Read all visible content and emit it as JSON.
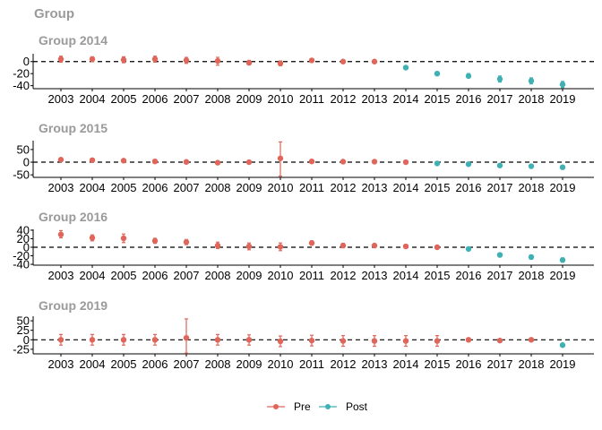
{
  "chart_data": {
    "type": "scatter",
    "title": "Group",
    "xlabel": "",
    "ylabel": "",
    "grid": false,
    "legend_position": "bottom",
    "colors": {
      "Pre": "#e0655a",
      "Post": "#3fb0b4",
      "reference_line": "#000000"
    },
    "legend": {
      "title": "",
      "items": [
        "Pre",
        "Post"
      ]
    },
    "x": [
      2003,
      2004,
      2005,
      2006,
      2007,
      2008,
      2009,
      2010,
      2011,
      2012,
      2013,
      2014,
      2015,
      2016,
      2017,
      2018,
      2019
    ],
    "panels": [
      {
        "title": "Group 2014",
        "ylim": [
          -45,
          13
        ],
        "yticks": [
          0,
          -20,
          -40
        ],
        "ref_y": 0,
        "points": [
          {
            "x": 2003,
            "y": 4,
            "lo": -1,
            "hi": 9,
            "group": "Pre"
          },
          {
            "x": 2004,
            "y": 4,
            "lo": 0,
            "hi": 8,
            "group": "Pre"
          },
          {
            "x": 2005,
            "y": 3,
            "lo": -2,
            "hi": 8,
            "group": "Pre"
          },
          {
            "x": 2006,
            "y": 4,
            "lo": -1,
            "hi": 9,
            "group": "Pre"
          },
          {
            "x": 2007,
            "y": 2,
            "lo": -3,
            "hi": 7,
            "group": "Pre"
          },
          {
            "x": 2008,
            "y": 1,
            "lo": -6,
            "hi": 7,
            "group": "Pre"
          },
          {
            "x": 2009,
            "y": -2,
            "lo": -5,
            "hi": 2,
            "group": "Pre"
          },
          {
            "x": 2010,
            "y": -3,
            "lo": -7,
            "hi": 1,
            "group": "Pre"
          },
          {
            "x": 2011,
            "y": 2,
            "lo": 0,
            "hi": 4,
            "group": "Pre"
          },
          {
            "x": 2012,
            "y": 0,
            "lo": -1,
            "hi": 1,
            "group": "Pre"
          },
          {
            "x": 2013,
            "y": 0,
            "lo": 0,
            "hi": 0,
            "group": "Pre"
          },
          {
            "x": 2014,
            "y": -10,
            "lo": -12,
            "hi": -8,
            "group": "Post"
          },
          {
            "x": 2015,
            "y": -20,
            "lo": -23,
            "hi": -17,
            "group": "Post"
          },
          {
            "x": 2016,
            "y": -24,
            "lo": -27,
            "hi": -20,
            "group": "Post"
          },
          {
            "x": 2017,
            "y": -29,
            "lo": -34,
            "hi": -24,
            "group": "Post"
          },
          {
            "x": 2018,
            "y": -32,
            "lo": -37,
            "hi": -27,
            "group": "Post"
          },
          {
            "x": 2019,
            "y": -38,
            "lo": -43,
            "hi": -33,
            "group": "Post"
          }
        ]
      },
      {
        "title": "Group 2015",
        "ylim": [
          -60,
          85
        ],
        "yticks": [
          50,
          0,
          -50
        ],
        "ref_y": 0,
        "points": [
          {
            "x": 2003,
            "y": 10,
            "lo": 5,
            "hi": 15,
            "group": "Pre"
          },
          {
            "x": 2004,
            "y": 8,
            "lo": 2,
            "hi": 14,
            "group": "Pre"
          },
          {
            "x": 2005,
            "y": 6,
            "lo": 0,
            "hi": 12,
            "group": "Pre"
          },
          {
            "x": 2006,
            "y": 3,
            "lo": -3,
            "hi": 9,
            "group": "Pre"
          },
          {
            "x": 2007,
            "y": 1,
            "lo": -5,
            "hi": 7,
            "group": "Pre"
          },
          {
            "x": 2008,
            "y": -2,
            "lo": -8,
            "hi": 4,
            "group": "Pre"
          },
          {
            "x": 2009,
            "y": 0,
            "lo": -4,
            "hi": 4,
            "group": "Pre"
          },
          {
            "x": 2010,
            "y": 15,
            "lo": -55,
            "hi": 80,
            "group": "Pre"
          },
          {
            "x": 2011,
            "y": 3,
            "lo": -1,
            "hi": 7,
            "group": "Pre"
          },
          {
            "x": 2012,
            "y": 2,
            "lo": -1,
            "hi": 5,
            "group": "Pre"
          },
          {
            "x": 2013,
            "y": 2,
            "lo": 0,
            "hi": 4,
            "group": "Pre"
          },
          {
            "x": 2014,
            "y": 0,
            "lo": -1,
            "hi": 1,
            "group": "Pre"
          },
          {
            "x": 2015,
            "y": -5,
            "lo": -9,
            "hi": -1,
            "group": "Post"
          },
          {
            "x": 2016,
            "y": -8,
            "lo": -12,
            "hi": -4,
            "group": "Post"
          },
          {
            "x": 2017,
            "y": -13,
            "lo": -18,
            "hi": -8,
            "group": "Post"
          },
          {
            "x": 2018,
            "y": -16,
            "lo": -21,
            "hi": -11,
            "group": "Post"
          },
          {
            "x": 2019,
            "y": -20,
            "lo": -25,
            "hi": -15,
            "group": "Post"
          }
        ]
      },
      {
        "title": "Group 2016",
        "ylim": [
          -42,
          42
        ],
        "yticks": [
          40,
          20,
          0,
          -20,
          -40
        ],
        "ref_y": 0,
        "points": [
          {
            "x": 2003,
            "y": 30,
            "lo": 22,
            "hi": 39,
            "group": "Pre"
          },
          {
            "x": 2004,
            "y": 22,
            "lo": 15,
            "hi": 29,
            "group": "Pre"
          },
          {
            "x": 2005,
            "y": 21,
            "lo": 11,
            "hi": 31,
            "group": "Pre"
          },
          {
            "x": 2006,
            "y": 15,
            "lo": 9,
            "hi": 21,
            "group": "Pre"
          },
          {
            "x": 2007,
            "y": 12,
            "lo": 6,
            "hi": 18,
            "group": "Pre"
          },
          {
            "x": 2008,
            "y": 4,
            "lo": -3,
            "hi": 12,
            "group": "Pre"
          },
          {
            "x": 2009,
            "y": 2,
            "lo": -6,
            "hi": 10,
            "group": "Pre"
          },
          {
            "x": 2010,
            "y": 1,
            "lo": -8,
            "hi": 10,
            "group": "Pre"
          },
          {
            "x": 2011,
            "y": 10,
            "lo": 5,
            "hi": 15,
            "group": "Pre"
          },
          {
            "x": 2012,
            "y": 4,
            "lo": -1,
            "hi": 9,
            "group": "Pre"
          },
          {
            "x": 2013,
            "y": 4,
            "lo": -1,
            "hi": 8,
            "group": "Pre"
          },
          {
            "x": 2014,
            "y": 2,
            "lo": -1,
            "hi": 5,
            "group": "Pre"
          },
          {
            "x": 2015,
            "y": 0,
            "lo": 0,
            "hi": 0,
            "group": "Pre"
          },
          {
            "x": 2016,
            "y": -4,
            "lo": -7,
            "hi": -1,
            "group": "Post"
          },
          {
            "x": 2017,
            "y": -18,
            "lo": -22,
            "hi": -14,
            "group": "Post"
          },
          {
            "x": 2018,
            "y": -23,
            "lo": -28,
            "hi": -18,
            "group": "Post"
          },
          {
            "x": 2019,
            "y": -30,
            "lo": -35,
            "hi": -25,
            "group": "Post"
          }
        ]
      },
      {
        "title": "Group 2019",
        "ylim": [
          -37,
          62
        ],
        "yticks": [
          50,
          25,
          0,
          -25
        ],
        "ref_y": 0,
        "points": [
          {
            "x": 2003,
            "y": 0,
            "lo": -14,
            "hi": 14,
            "group": "Pre"
          },
          {
            "x": 2004,
            "y": 0,
            "lo": -14,
            "hi": 14,
            "group": "Pre"
          },
          {
            "x": 2005,
            "y": 0,
            "lo": -14,
            "hi": 14,
            "group": "Pre"
          },
          {
            "x": 2006,
            "y": 0,
            "lo": -14,
            "hi": 14,
            "group": "Pre"
          },
          {
            "x": 2007,
            "y": 5,
            "lo": -35,
            "hi": 55,
            "group": "Pre"
          },
          {
            "x": 2008,
            "y": 0,
            "lo": -14,
            "hi": 14,
            "group": "Pre"
          },
          {
            "x": 2009,
            "y": 0,
            "lo": -14,
            "hi": 13,
            "group": "Pre"
          },
          {
            "x": 2010,
            "y": -4,
            "lo": -18,
            "hi": 10,
            "group": "Pre"
          },
          {
            "x": 2011,
            "y": -2,
            "lo": -16,
            "hi": 12,
            "group": "Pre"
          },
          {
            "x": 2012,
            "y": -3,
            "lo": -17,
            "hi": 11,
            "group": "Pre"
          },
          {
            "x": 2013,
            "y": -3,
            "lo": -17,
            "hi": 11,
            "group": "Pre"
          },
          {
            "x": 2014,
            "y": -3,
            "lo": -17,
            "hi": 11,
            "group": "Pre"
          },
          {
            "x": 2015,
            "y": -3,
            "lo": -17,
            "hi": 11,
            "group": "Pre"
          },
          {
            "x": 2016,
            "y": 0,
            "lo": -3,
            "hi": 3,
            "group": "Pre"
          },
          {
            "x": 2017,
            "y": -2,
            "lo": -5,
            "hi": 1,
            "group": "Pre"
          },
          {
            "x": 2018,
            "y": 0,
            "lo": -2,
            "hi": 2,
            "group": "Pre"
          },
          {
            "x": 2019,
            "y": -14,
            "lo": -17,
            "hi": -11,
            "group": "Post"
          }
        ]
      }
    ]
  }
}
